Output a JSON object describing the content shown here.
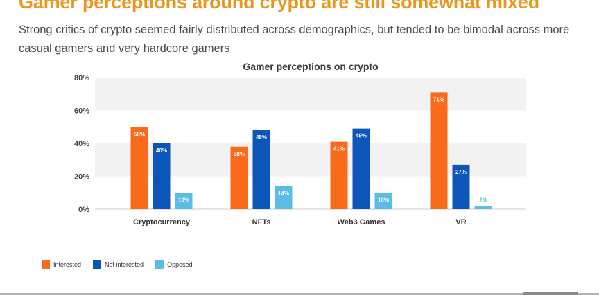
{
  "slide": {
    "title": "Gamer perceptions around crypto are still somewhat mixed",
    "subtitle": "Strong critics of crypto seemed fairly distributed across demographics, but tended to be bimodal across more casual gamers and very hardcore gamers"
  },
  "colors": {
    "title": "#E8961C",
    "interested": "#F96A1A",
    "not_interested": "#0B56B8",
    "opposed": "#5BBCE6",
    "band": "#F2F2F2"
  },
  "chart_data": {
    "type": "bar",
    "title": "Gamer perceptions on crypto",
    "categories": [
      "Cryptocurrency",
      "NFTs",
      "Web3 Games",
      "VR"
    ],
    "series": [
      {
        "name": "Interested",
        "values": [
          50,
          38,
          41,
          71
        ],
        "labels": [
          "50%",
          "38%",
          "41%",
          "71%"
        ]
      },
      {
        "name": "Not interested",
        "values": [
          40,
          48,
          49,
          27
        ],
        "labels": [
          "40%",
          "48%",
          "49%",
          "27%"
        ]
      },
      {
        "name": "Opposed",
        "values": [
          10,
          14,
          10,
          2
        ],
        "labels": [
          "10%",
          "14%",
          "10%",
          "2%"
        ]
      }
    ],
    "ylim": [
      0,
      80
    ],
    "yticks": [
      0,
      20,
      40,
      60,
      80
    ],
    "ytick_labels": [
      "0%",
      "20%",
      "40%",
      "60%",
      "80%"
    ],
    "xlabel": "",
    "ylabel": "",
    "legend": "bottom-left",
    "grid": "alternating bands"
  }
}
